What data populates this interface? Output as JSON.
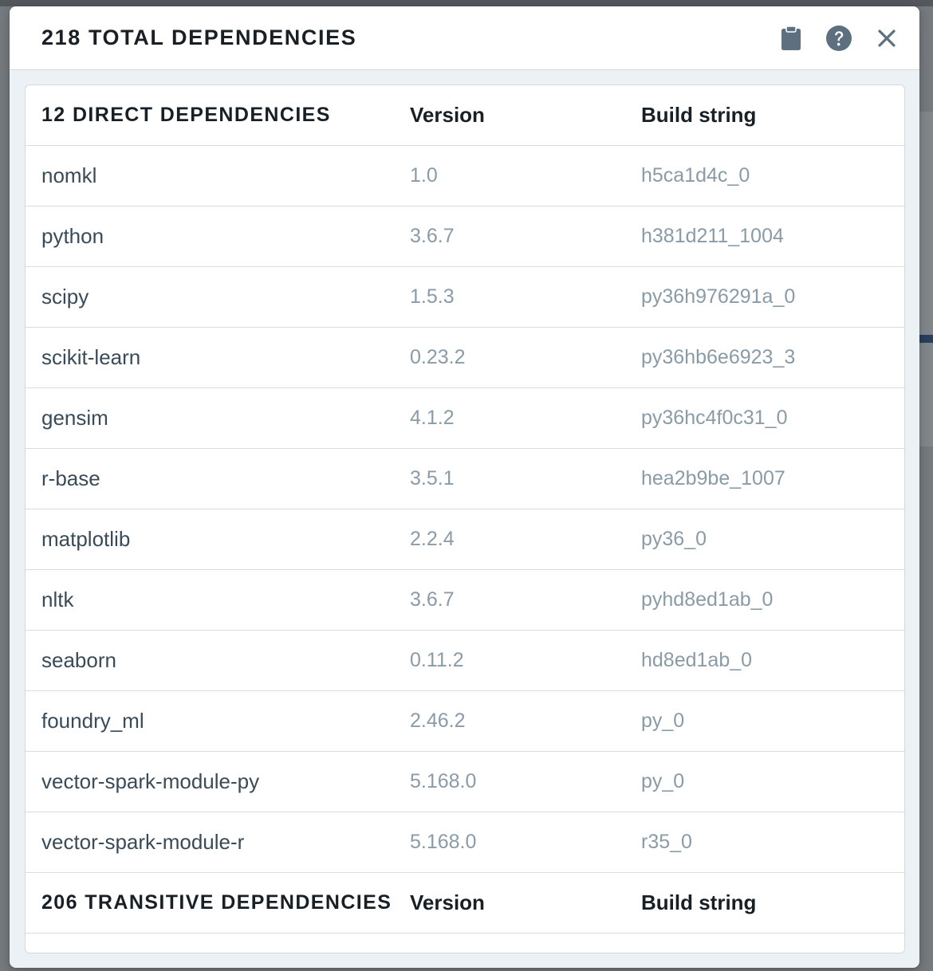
{
  "dialog": {
    "title": "218 TOTAL DEPENDENCIES",
    "icons": [
      "clipboard-icon",
      "help-icon",
      "close-icon"
    ]
  },
  "direct": {
    "heading": "12 DIRECT DEPENDENCIES",
    "version_header": "Version",
    "build_header": "Build string",
    "rows": [
      {
        "name": "nomkl",
        "version": "1.0",
        "build": "h5ca1d4c_0"
      },
      {
        "name": "python",
        "version": "3.6.7",
        "build": "h381d211_1004"
      },
      {
        "name": "scipy",
        "version": "1.5.3",
        "build": "py36h976291a_0"
      },
      {
        "name": "scikit-learn",
        "version": "0.23.2",
        "build": "py36hb6e6923_3"
      },
      {
        "name": "gensim",
        "version": "4.1.2",
        "build": "py36hc4f0c31_0"
      },
      {
        "name": "r-base",
        "version": "3.5.1",
        "build": "hea2b9be_1007"
      },
      {
        "name": "matplotlib",
        "version": "2.2.4",
        "build": "py36_0"
      },
      {
        "name": "nltk",
        "version": "3.6.7",
        "build": "pyhd8ed1ab_0"
      },
      {
        "name": "seaborn",
        "version": "0.11.2",
        "build": "hd8ed1ab_0"
      },
      {
        "name": "foundry_ml",
        "version": "2.46.2",
        "build": "py_0"
      },
      {
        "name": "vector-spark-module-py",
        "version": "5.168.0",
        "build": "py_0"
      },
      {
        "name": "vector-spark-module-r",
        "version": "5.168.0",
        "build": "r35_0"
      }
    ]
  },
  "transitive": {
    "heading": "206 TRANSITIVE DEPENDENCIES",
    "version_header": "Version",
    "build_header": "Build string"
  },
  "colors": {
    "text_dark": "#182026",
    "text_name": "#394b59",
    "text_muted": "#8a9ba8",
    "icon": "#5c7080"
  }
}
